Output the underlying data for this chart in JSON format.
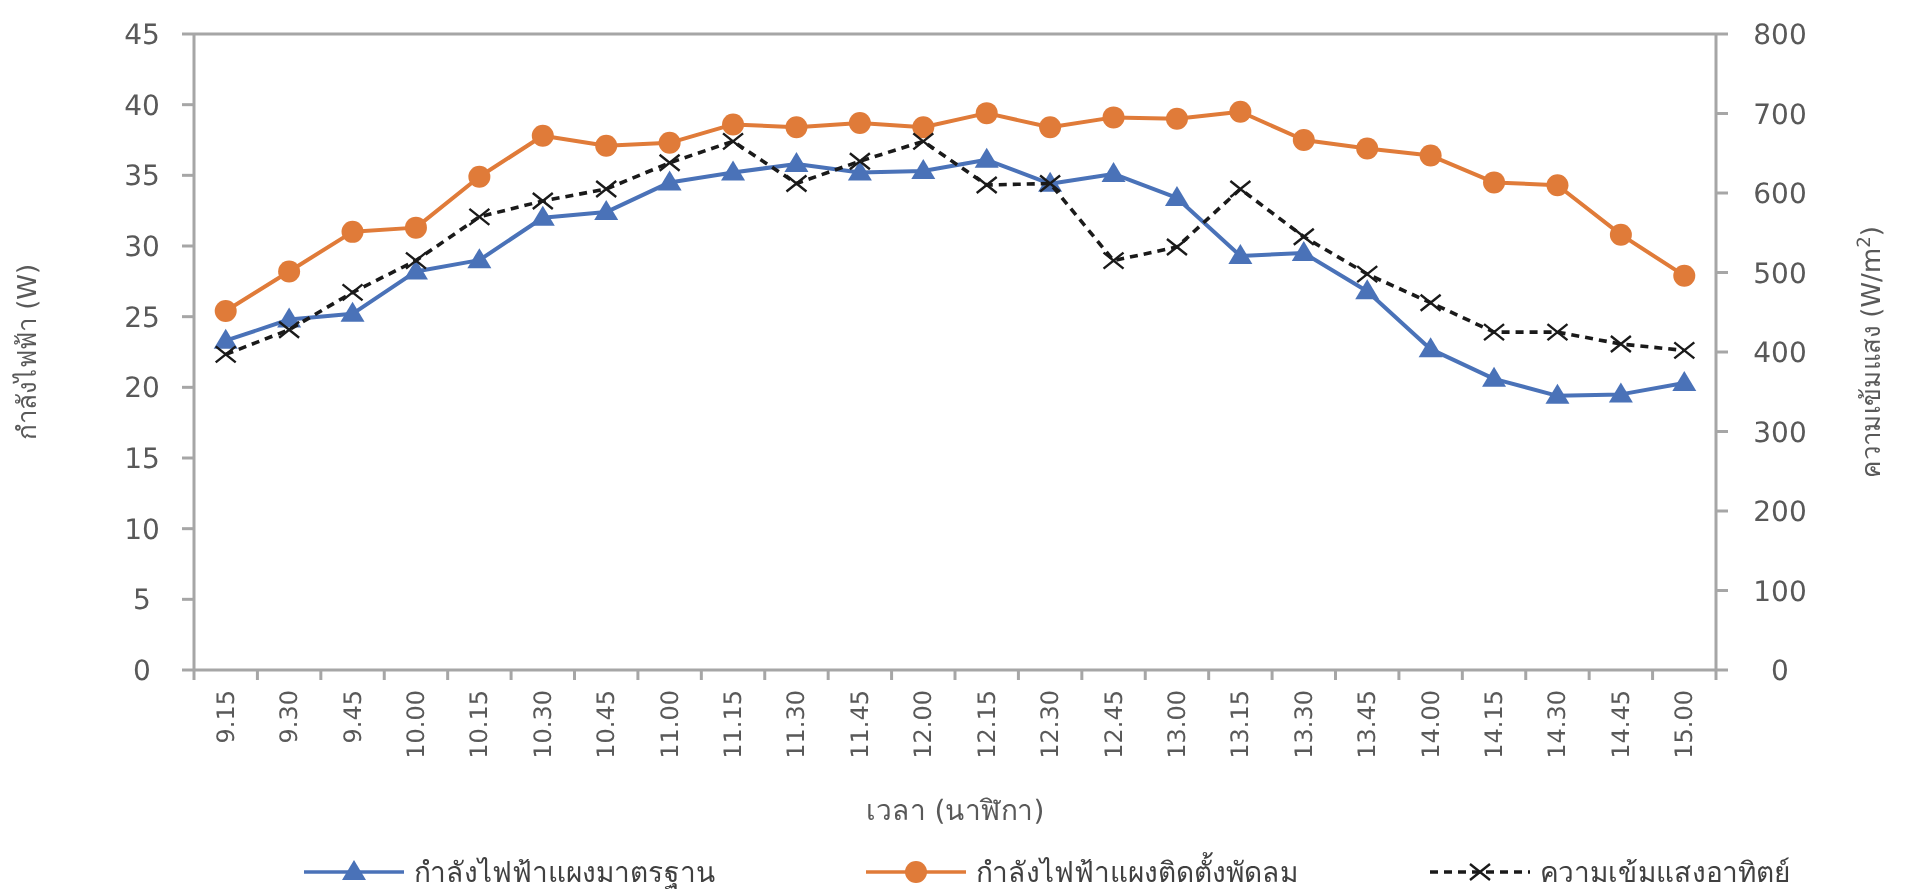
{
  "chart_data": {
    "type": "line",
    "xlabel": "เวลา (นาฬิกา)",
    "ylabel": "กำลังไฟฟ้า (W)",
    "y2label": "ความเข้มแสง (W/m$^{2}$)",
    "categories": [
      "9.15",
      "9.30",
      "9.45",
      "10.00",
      "10.15",
      "10.30",
      "10.45",
      "11.00",
      "11.15",
      "11.30",
      "11.45",
      "12.00",
      "12.15",
      "12.30",
      "12.45",
      "13.00",
      "13.15",
      "13.30",
      "13.45",
      "14.00",
      "14.15",
      "14.30",
      "14.45",
      "15.00"
    ],
    "series": [
      {
        "name": "กำลังไฟฟ้าแผงมาตรฐาน",
        "color": "#4a72b8",
        "marker": "triangle",
        "line_style": "solid",
        "values": [
          23.3,
          24.8,
          25.2,
          28.2,
          29.0,
          32.0,
          32.4,
          34.5,
          35.2,
          35.8,
          35.2,
          35.3,
          36.1,
          34.4,
          35.1,
          33.4,
          29.3,
          29.5,
          26.8,
          22.7,
          20.6,
          19.4,
          19.5,
          20.3
        ]
      },
      {
        "name": "กำลังไฟฟ้าแผงติดตั้งพัดลม",
        "color": "#e07b39",
        "marker": "circle",
        "line_style": "solid",
        "values": [
          25.4,
          28.2,
          31.0,
          31.3,
          34.9,
          37.8,
          37.1,
          37.3,
          38.6,
          38.4,
          38.7,
          38.4,
          39.4,
          38.4,
          39.1,
          39.0,
          39.5,
          37.5,
          36.9,
          36.4,
          34.5,
          34.3,
          30.8,
          27.9
        ]
      },
      {
        "name": "ความเข้มแสงอาทิตย์",
        "color": "#1a1a1a",
        "marker": "cross",
        "line_style": "dashed",
        "axis": "y2",
        "values": [
          397,
          428,
          475,
          515,
          570,
          590,
          605,
          638,
          665,
          612,
          640,
          665,
          610,
          612,
          515,
          532,
          605,
          545,
          498,
          462,
          425,
          425,
          410,
          402
        ]
      }
    ],
    "ylim": [
      0,
      45
    ],
    "yticks": [
      0,
      5,
      10,
      15,
      20,
      25,
      30,
      35,
      40,
      45
    ],
    "y2lim": [
      0,
      800
    ],
    "y2ticks": [
      0,
      100,
      200,
      300,
      400,
      500,
      600,
      700,
      800
    ],
    "grid": false,
    "legend": "bottom"
  }
}
